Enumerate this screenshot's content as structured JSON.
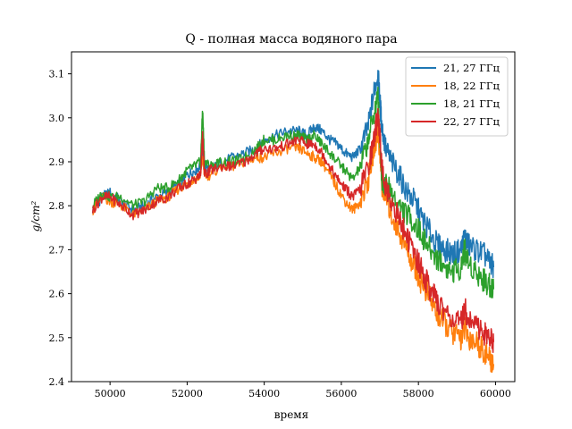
{
  "chart_data": {
    "type": "line",
    "title": "Q - полная масса водяного пара",
    "xlabel": "время",
    "ylabel": "g/cm²",
    "xlim": [
      49000,
      60500
    ],
    "ylim": [
      2.4,
      3.15
    ],
    "xticks": [
      50000,
      52000,
      54000,
      56000,
      58000,
      60000
    ],
    "xtick_labels": [
      "50000",
      "52000",
      "54000",
      "56000",
      "58000",
      "60000"
    ],
    "yticks": [
      2.4,
      2.5,
      2.6,
      2.7,
      2.8,
      2.9,
      3.0,
      3.1
    ],
    "ytick_labels": [
      "2.4",
      "2.5",
      "2.6",
      "2.7",
      "2.8",
      "2.9",
      "3.0",
      "3.1"
    ],
    "grid": false,
    "legend_position": "top-right",
    "series": [
      {
        "name": "21, 27 ГГц",
        "color": "#1f77b4",
        "x": [
          49550,
          49800,
          50000,
          50300,
          50600,
          50900,
          51200,
          51500,
          51800,
          52000,
          52200,
          52350,
          52400,
          52450,
          52600,
          52900,
          53200,
          53500,
          53800,
          54000,
          54300,
          54600,
          54900,
          55100,
          55300,
          55500,
          55700,
          55900,
          56100,
          56300,
          56500,
          56700,
          56850,
          56950,
          57000,
          57050,
          57150,
          57300,
          57500,
          57700,
          57900,
          58100,
          58300,
          58500,
          58700,
          58900,
          59100,
          59200,
          59300,
          59500,
          59700,
          59850,
          59950
        ],
        "values": [
          2.79,
          2.82,
          2.83,
          2.81,
          2.79,
          2.8,
          2.82,
          2.83,
          2.85,
          2.87,
          2.88,
          2.89,
          2.93,
          2.89,
          2.88,
          2.9,
          2.91,
          2.92,
          2.93,
          2.95,
          2.96,
          2.97,
          2.97,
          2.96,
          2.98,
          2.97,
          2.95,
          2.94,
          2.92,
          2.91,
          2.93,
          2.98,
          3.06,
          3.1,
          3.04,
          2.98,
          2.93,
          2.9,
          2.87,
          2.83,
          2.81,
          2.77,
          2.74,
          2.71,
          2.7,
          2.69,
          2.7,
          2.73,
          2.71,
          2.7,
          2.69,
          2.67,
          2.66
        ]
      },
      {
        "name": "18, 22 ГГц",
        "color": "#ff7f0e",
        "x": [
          49550,
          49800,
          50000,
          50300,
          50600,
          50900,
          51200,
          51500,
          51800,
          52000,
          52200,
          52350,
          52400,
          52450,
          52600,
          52900,
          53200,
          53500,
          53800,
          54000,
          54300,
          54600,
          54900,
          55100,
          55300,
          55500,
          55700,
          55900,
          56100,
          56300,
          56500,
          56700,
          56850,
          56950,
          57000,
          57050,
          57150,
          57300,
          57500,
          57700,
          57900,
          58100,
          58300,
          58500,
          58700,
          58900,
          59100,
          59200,
          59300,
          59500,
          59700,
          59850,
          59950
        ],
        "values": [
          2.79,
          2.82,
          2.81,
          2.8,
          2.78,
          2.79,
          2.81,
          2.82,
          2.84,
          2.85,
          2.86,
          2.87,
          2.91,
          2.87,
          2.87,
          2.89,
          2.89,
          2.9,
          2.91,
          2.91,
          2.92,
          2.93,
          2.93,
          2.92,
          2.91,
          2.9,
          2.87,
          2.84,
          2.81,
          2.79,
          2.81,
          2.86,
          2.93,
          2.97,
          2.92,
          2.85,
          2.82,
          2.78,
          2.74,
          2.7,
          2.66,
          2.62,
          2.59,
          2.55,
          2.53,
          2.51,
          2.5,
          2.52,
          2.5,
          2.49,
          2.47,
          2.45,
          2.44
        ]
      },
      {
        "name": "18, 21 ГГц",
        "color": "#2ca02c",
        "x": [
          49550,
          49800,
          50000,
          50300,
          50600,
          50900,
          51200,
          51500,
          51800,
          52000,
          52200,
          52350,
          52400,
          52450,
          52600,
          52900,
          53200,
          53500,
          53800,
          54000,
          54300,
          54600,
          54900,
          55100,
          55300,
          55500,
          55700,
          55900,
          56100,
          56300,
          56500,
          56700,
          56850,
          56950,
          57000,
          57050,
          57150,
          57300,
          57500,
          57700,
          57900,
          58100,
          58300,
          58500,
          58700,
          58900,
          59100,
          59200,
          59300,
          59500,
          59700,
          59850,
          59950
        ],
        "values": [
          2.8,
          2.83,
          2.82,
          2.82,
          2.8,
          2.81,
          2.84,
          2.84,
          2.86,
          2.88,
          2.89,
          2.9,
          3.02,
          2.9,
          2.89,
          2.9,
          2.9,
          2.91,
          2.93,
          2.95,
          2.95,
          2.96,
          2.96,
          2.95,
          2.96,
          2.94,
          2.92,
          2.9,
          2.88,
          2.86,
          2.89,
          2.95,
          3.01,
          3.05,
          2.96,
          2.86,
          2.85,
          2.83,
          2.8,
          2.78,
          2.76,
          2.73,
          2.7,
          2.68,
          2.66,
          2.65,
          2.66,
          2.7,
          2.67,
          2.65,
          2.63,
          2.62,
          2.61
        ]
      },
      {
        "name": "22, 27 ГГц",
        "color": "#d62728",
        "x": [
          49550,
          49800,
          50000,
          50300,
          50600,
          50900,
          51200,
          51500,
          51800,
          52000,
          52200,
          52350,
          52400,
          52450,
          52600,
          52900,
          53200,
          53500,
          53800,
          54000,
          54300,
          54600,
          54900,
          55100,
          55300,
          55500,
          55700,
          55900,
          56100,
          56300,
          56500,
          56700,
          56850,
          56950,
          57000,
          57050,
          57150,
          57300,
          57500,
          57700,
          57900,
          58100,
          58300,
          58500,
          58700,
          58900,
          59100,
          59200,
          59300,
          59500,
          59700,
          59850,
          59950
        ],
        "values": [
          2.79,
          2.82,
          2.82,
          2.8,
          2.78,
          2.79,
          2.81,
          2.82,
          2.84,
          2.85,
          2.86,
          2.87,
          2.96,
          2.87,
          2.88,
          2.89,
          2.89,
          2.9,
          2.92,
          2.93,
          2.93,
          2.94,
          2.95,
          2.94,
          2.94,
          2.92,
          2.89,
          2.86,
          2.84,
          2.82,
          2.84,
          2.89,
          2.95,
          3.01,
          2.96,
          2.89,
          2.84,
          2.81,
          2.77,
          2.73,
          2.69,
          2.65,
          2.61,
          2.58,
          2.56,
          2.54,
          2.53,
          2.57,
          2.54,
          2.53,
          2.51,
          2.5,
          2.49
        ]
      }
    ]
  }
}
